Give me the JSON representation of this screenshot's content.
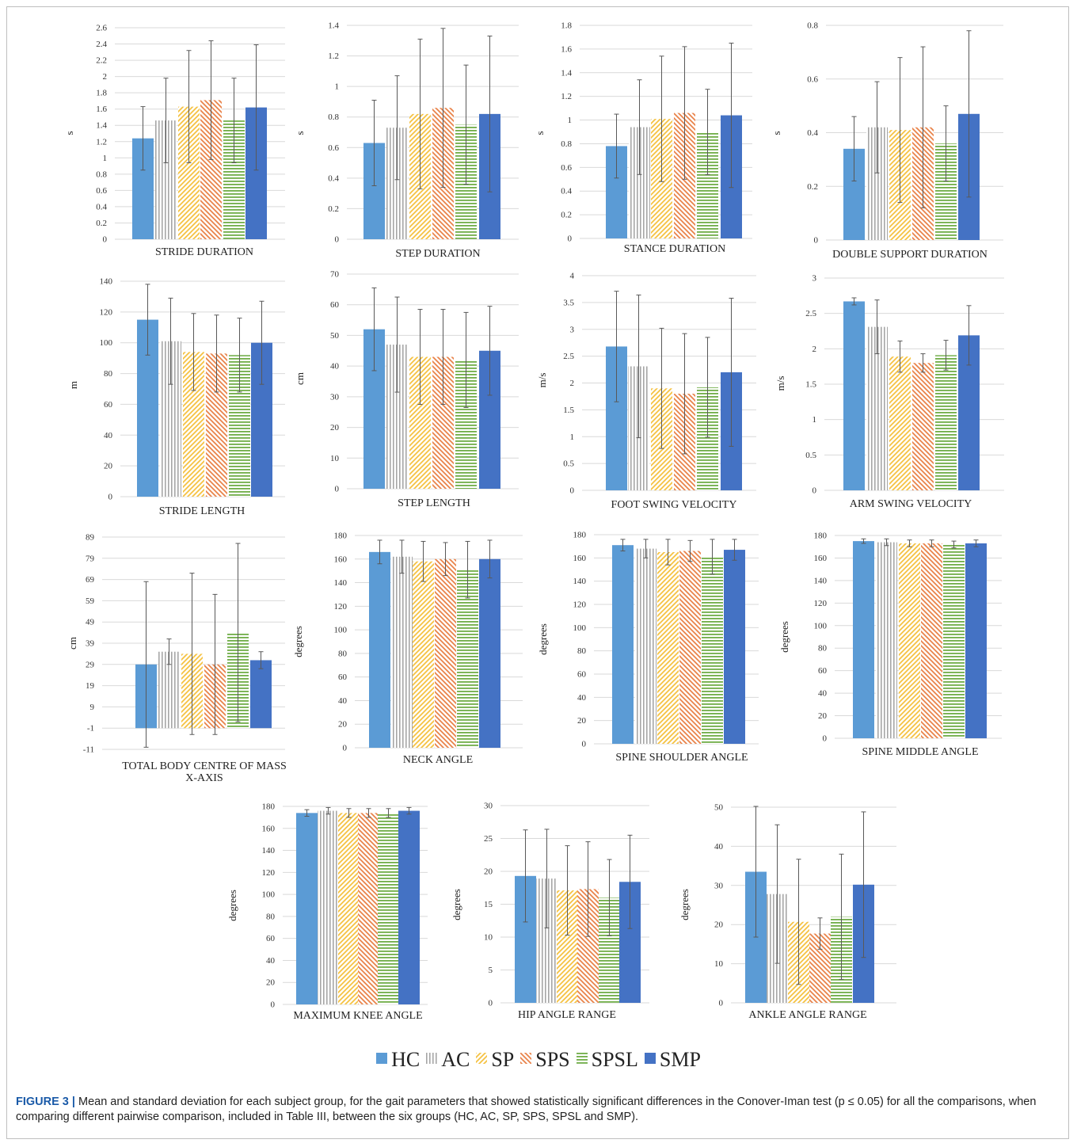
{
  "groups": [
    "HC",
    "AC",
    "SP",
    "SPS",
    "SPSL",
    "SMP"
  ],
  "group_styles": [
    {
      "fill": "#5b9bd5",
      "pattern": "solid"
    },
    {
      "fill": "#a6a6a6",
      "pattern": "vertical"
    },
    {
      "fill": "#f5c242",
      "pattern": "diag-up"
    },
    {
      "fill": "#e9834a",
      "pattern": "diag-down"
    },
    {
      "fill": "#70ad47",
      "pattern": "horizontal"
    },
    {
      "fill": "#4472c4",
      "pattern": "solid"
    }
  ],
  "chart_data": [
    {
      "type": "bar",
      "xlabel": "STRIDE DURATION",
      "ylabel": "s",
      "ylim": [
        0,
        2.6
      ],
      "yticks": [
        0,
        0.2,
        0.4,
        0.6,
        0.8,
        1,
        1.2,
        1.4,
        1.6,
        1.8,
        2,
        2.2,
        2.4,
        2.6
      ],
      "categories": [
        "HC",
        "AC",
        "SP",
        "SPS",
        "SPSL",
        "SMP"
      ],
      "values": [
        1.24,
        1.46,
        1.63,
        1.71,
        1.46,
        1.62
      ],
      "errors": [
        0.39,
        0.52,
        0.69,
        0.73,
        0.52,
        0.77
      ]
    },
    {
      "type": "bar",
      "xlabel": "STEP DURATION",
      "ylabel": "s",
      "ylim": [
        0,
        1.4
      ],
      "yticks": [
        0,
        0.2,
        0.4,
        0.6,
        0.8,
        1,
        1.2,
        1.4
      ],
      "categories": [
        "HC",
        "AC",
        "SP",
        "SPS",
        "SPSL",
        "SMP"
      ],
      "values": [
        0.63,
        0.73,
        0.82,
        0.86,
        0.75,
        0.82
      ],
      "errors": [
        0.28,
        0.34,
        0.49,
        0.52,
        0.39,
        0.51
      ]
    },
    {
      "type": "bar",
      "xlabel": "STANCE DURATION",
      "ylabel": "s",
      "ylim": [
        0,
        1.8
      ],
      "yticks": [
        0,
        0.2,
        0.4,
        0.6,
        0.8,
        1,
        1.2,
        1.4,
        1.6,
        1.8
      ],
      "categories": [
        "HC",
        "AC",
        "SP",
        "SPS",
        "SPSL",
        "SMP"
      ],
      "values": [
        0.78,
        0.94,
        1.01,
        1.06,
        0.9,
        1.04
      ],
      "errors": [
        0.27,
        0.4,
        0.53,
        0.56,
        0.36,
        0.61
      ]
    },
    {
      "type": "bar",
      "xlabel": "DOUBLE SUPPORT DURATION",
      "ylabel": "s",
      "ylim": [
        0,
        0.8
      ],
      "yticks": [
        0,
        0.2,
        0.4,
        0.6,
        0.8
      ],
      "categories": [
        "HC",
        "AC",
        "SP",
        "SPS",
        "SPSL",
        "SMP"
      ],
      "values": [
        0.34,
        0.42,
        0.41,
        0.42,
        0.36,
        0.47
      ],
      "errors": [
        0.12,
        0.17,
        0.27,
        0.3,
        0.14,
        0.31
      ]
    },
    {
      "type": "bar",
      "xlabel": "STRIDE LENGTH",
      "ylabel": "m",
      "ylim": [
        0,
        140
      ],
      "yticks": [
        0,
        20,
        40,
        60,
        80,
        100,
        120,
        140
      ],
      "categories": [
        "HC",
        "AC",
        "SP",
        "SPS",
        "SPSL",
        "SMP"
      ],
      "values": [
        115,
        101,
        94,
        93,
        92,
        100
      ],
      "errors": [
        23,
        28,
        25,
        25,
        24,
        27
      ]
    },
    {
      "type": "bar",
      "xlabel": "STEP LENGTH",
      "ylabel": "cm",
      "ylim": [
        0,
        70
      ],
      "yticks": [
        0,
        10,
        20,
        30,
        40,
        50,
        60,
        70
      ],
      "categories": [
        "HC",
        "AC",
        "SP",
        "SPS",
        "SPSL",
        "SMP"
      ],
      "values": [
        52,
        47,
        43,
        43,
        42,
        45
      ],
      "errors": [
        13.5,
        15.5,
        15.5,
        15.5,
        15.5,
        14.5
      ]
    },
    {
      "type": "bar",
      "xlabel": "FOOT SWING VELOCITY",
      "ylabel": "m/s",
      "ylim": [
        0,
        4
      ],
      "yticks": [
        0,
        0.5,
        1,
        1.5,
        2,
        2.5,
        3,
        3.5,
        4
      ],
      "categories": [
        "HC",
        "AC",
        "SP",
        "SPS",
        "SPSL",
        "SMP"
      ],
      "values": [
        2.68,
        2.31,
        1.9,
        1.8,
        1.92,
        2.2
      ],
      "errors": [
        1.03,
        1.33,
        1.12,
        1.12,
        0.93,
        1.38
      ]
    },
    {
      "type": "bar",
      "xlabel": "ARM SWING VELOCITY",
      "ylabel": "m/s",
      "ylim": [
        0,
        3
      ],
      "yticks": [
        0,
        0.5,
        1,
        1.5,
        2,
        2.5,
        3
      ],
      "categories": [
        "HC",
        "AC",
        "SP",
        "SPS",
        "SPSL",
        "SMP"
      ],
      "values": [
        2.67,
        2.31,
        1.89,
        1.8,
        1.91,
        2.19
      ],
      "errors": [
        0.05,
        0.38,
        0.22,
        0.13,
        0.21,
        0.42
      ]
    },
    {
      "type": "bar",
      "xlabel": "TOTAL BODY CENTRE OF MASS X-AXIS",
      "ylabel": "cm",
      "ylim": [
        -11,
        89
      ],
      "ybase": -1,
      "yticks": [
        -11,
        -1,
        9,
        19,
        29,
        39,
        49,
        59,
        69,
        79,
        89
      ],
      "categories": [
        "HC",
        "AC",
        "SP",
        "SPS",
        "SPSL",
        "SMP"
      ],
      "values": [
        29,
        35,
        34,
        29,
        44,
        31
      ],
      "errors": [
        39,
        6,
        38,
        33,
        42,
        4
      ]
    },
    {
      "type": "bar",
      "xlabel": "NECK ANGLE",
      "ylabel": "degrees",
      "ylim": [
        0,
        180
      ],
      "yticks": [
        0,
        20,
        40,
        60,
        80,
        100,
        120,
        140,
        160,
        180
      ],
      "categories": [
        "HC",
        "AC",
        "SP",
        "SPS",
        "SPSL",
        "SMP"
      ],
      "values": [
        166,
        162,
        158,
        160,
        151,
        160
      ],
      "errors": [
        10,
        14,
        17,
        14,
        24,
        16
      ]
    },
    {
      "type": "bar",
      "xlabel": "SPINE SHOULDER ANGLE",
      "ylabel": "degrees",
      "ylim": [
        0,
        180
      ],
      "yticks": [
        0,
        20,
        40,
        60,
        80,
        100,
        120,
        140,
        160,
        180
      ],
      "categories": [
        "HC",
        "AC",
        "SP",
        "SPS",
        "SPSL",
        "SMP"
      ],
      "values": [
        171,
        168,
        165,
        166,
        161,
        167
      ],
      "errors": [
        5,
        8,
        11,
        9,
        15,
        9
      ]
    },
    {
      "type": "bar",
      "xlabel": "SPINE MIDDLE ANGLE",
      "ylabel": "degrees",
      "ylim": [
        0,
        180
      ],
      "yticks": [
        0,
        20,
        40,
        60,
        80,
        100,
        120,
        140,
        160,
        180
      ],
      "categories": [
        "HC",
        "AC",
        "SP",
        "SPS",
        "SPSL",
        "SMP"
      ],
      "values": [
        175,
        174,
        173,
        173,
        172,
        173
      ],
      "errors": [
        2,
        3,
        3,
        3,
        3,
        3
      ]
    },
    {
      "type": "bar",
      "xlabel": "MAXIMUM KNEE ANGLE",
      "ylabel": "degrees",
      "ylim": [
        0,
        180
      ],
      "yticks": [
        0,
        20,
        40,
        60,
        80,
        100,
        120,
        140,
        160,
        180
      ],
      "categories": [
        "HC",
        "AC",
        "SP",
        "SPS",
        "SPSL",
        "SMP"
      ],
      "values": [
        174,
        176,
        174,
        174,
        174,
        176
      ],
      "errors": [
        3,
        3,
        4,
        4,
        4,
        3
      ]
    },
    {
      "type": "bar",
      "xlabel": "HIP ANGLE RANGE",
      "ylabel": "degrees",
      "ylim": [
        0,
        30
      ],
      "yticks": [
        0,
        5,
        10,
        15,
        20,
        25,
        30
      ],
      "categories": [
        "HC",
        "AC",
        "SP",
        "SPS",
        "SPSL",
        "SMP"
      ],
      "values": [
        19.3,
        18.9,
        17.1,
        17.3,
        16,
        18.4
      ],
      "errors": [
        7,
        7.5,
        6.8,
        7.2,
        5.8,
        7.1
      ]
    },
    {
      "type": "bar",
      "xlabel": "ANKLE ANGLE RANGE",
      "ylabel": "degrees",
      "ylim": [
        0,
        50
      ],
      "yticks": [
        0,
        10,
        20,
        30,
        40,
        50
      ],
      "categories": [
        "HC",
        "AC",
        "SP",
        "SPS",
        "SPSL",
        "SMP"
      ],
      "values": [
        33.5,
        27.8,
        20.7,
        17.7,
        22,
        30.2
      ],
      "errors": [
        16.7,
        17.7,
        16,
        4,
        16,
        18.6
      ]
    }
  ],
  "caption": {
    "label": "FIGURE 3 |",
    "text": " Mean and standard deviation for each subject group, for the gait parameters that showed statistically significant differences in the Conover-Iman test (p ≤ 0.05) for all the comparisons, when comparing different pairwise comparison, included in Table III, between the six groups (HC, AC, SP, SPS, SPSL and SMP)."
  }
}
